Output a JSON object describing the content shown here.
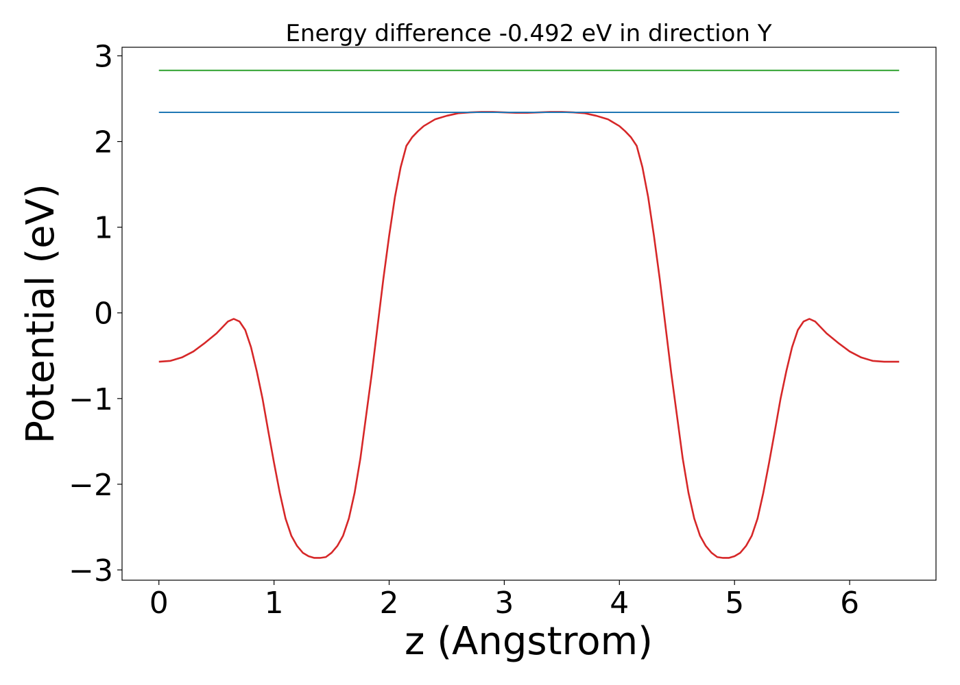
{
  "chart_data": {
    "type": "line",
    "title": "Energy difference -0.492 eV in direction Y",
    "xlabel": "z (Angstrom)",
    "ylabel": "Potential (eV)",
    "xlim": [
      -0.32,
      6.75
    ],
    "ylim": [
      -3.12,
      3.1
    ],
    "xticks": [
      0,
      1,
      2,
      3,
      4,
      5,
      6
    ],
    "xtick_labels": [
      "0",
      "1",
      "2",
      "3",
      "4",
      "5",
      "6"
    ],
    "yticks": [
      -3,
      -2,
      -1,
      0,
      1,
      2,
      3
    ],
    "ytick_labels": [
      "−3",
      "−2",
      "−1",
      "0",
      "1",
      "2",
      "3"
    ],
    "grid": false,
    "series": [
      {
        "color": "#d62728",
        "points": [
          [
            0.0,
            -0.57
          ],
          [
            0.1,
            -0.56
          ],
          [
            0.2,
            -0.52
          ],
          [
            0.3,
            -0.45
          ],
          [
            0.4,
            -0.35
          ],
          [
            0.5,
            -0.24
          ],
          [
            0.55,
            -0.17
          ],
          [
            0.6,
            -0.1
          ],
          [
            0.65,
            -0.07
          ],
          [
            0.7,
            -0.1
          ],
          [
            0.75,
            -0.2
          ],
          [
            0.8,
            -0.4
          ],
          [
            0.85,
            -0.68
          ],
          [
            0.9,
            -1.0
          ],
          [
            0.95,
            -1.38
          ],
          [
            1.0,
            -1.75
          ],
          [
            1.05,
            -2.1
          ],
          [
            1.1,
            -2.4
          ],
          [
            1.15,
            -2.6
          ],
          [
            1.2,
            -2.72
          ],
          [
            1.25,
            -2.8
          ],
          [
            1.3,
            -2.84
          ],
          [
            1.35,
            -2.86
          ],
          [
            1.4,
            -2.86
          ],
          [
            1.45,
            -2.85
          ],
          [
            1.5,
            -2.8
          ],
          [
            1.55,
            -2.72
          ],
          [
            1.6,
            -2.6
          ],
          [
            1.65,
            -2.4
          ],
          [
            1.7,
            -2.1
          ],
          [
            1.75,
            -1.7
          ],
          [
            1.8,
            -1.2
          ],
          [
            1.85,
            -0.7
          ],
          [
            1.9,
            -0.15
          ],
          [
            1.95,
            0.4
          ],
          [
            2.0,
            0.9
          ],
          [
            2.05,
            1.35
          ],
          [
            2.1,
            1.7
          ],
          [
            2.15,
            1.95
          ],
          [
            2.2,
            2.05
          ],
          [
            2.25,
            2.12
          ],
          [
            2.3,
            2.18
          ],
          [
            2.4,
            2.26
          ],
          [
            2.5,
            2.3
          ],
          [
            2.6,
            2.33
          ],
          [
            2.7,
            2.34
          ],
          [
            2.8,
            2.345
          ],
          [
            2.9,
            2.345
          ],
          [
            3.0,
            2.34
          ],
          [
            3.1,
            2.335
          ],
          [
            3.2,
            2.335
          ],
          [
            3.3,
            2.34
          ],
          [
            3.4,
            2.345
          ],
          [
            3.5,
            2.345
          ],
          [
            3.6,
            2.34
          ],
          [
            3.7,
            2.33
          ],
          [
            3.8,
            2.3
          ],
          [
            3.9,
            2.26
          ],
          [
            4.0,
            2.18
          ],
          [
            4.05,
            2.12
          ],
          [
            4.1,
            2.05
          ],
          [
            4.15,
            1.95
          ],
          [
            4.2,
            1.7
          ],
          [
            4.25,
            1.35
          ],
          [
            4.3,
            0.9
          ],
          [
            4.35,
            0.4
          ],
          [
            4.4,
            -0.15
          ],
          [
            4.45,
            -0.7
          ],
          [
            4.5,
            -1.2
          ],
          [
            4.55,
            -1.7
          ],
          [
            4.6,
            -2.1
          ],
          [
            4.65,
            -2.4
          ],
          [
            4.7,
            -2.6
          ],
          [
            4.75,
            -2.72
          ],
          [
            4.8,
            -2.8
          ],
          [
            4.85,
            -2.85
          ],
          [
            4.9,
            -2.86
          ],
          [
            4.95,
            -2.86
          ],
          [
            5.0,
            -2.84
          ],
          [
            5.05,
            -2.8
          ],
          [
            5.1,
            -2.72
          ],
          [
            5.15,
            -2.6
          ],
          [
            5.2,
            -2.4
          ],
          [
            5.25,
            -2.1
          ],
          [
            5.3,
            -1.75
          ],
          [
            5.35,
            -1.38
          ],
          [
            5.4,
            -1.0
          ],
          [
            5.45,
            -0.68
          ],
          [
            5.5,
            -0.4
          ],
          [
            5.55,
            -0.2
          ],
          [
            5.6,
            -0.1
          ],
          [
            5.65,
            -0.07
          ],
          [
            5.7,
            -0.1
          ],
          [
            5.75,
            -0.17
          ],
          [
            5.8,
            -0.24
          ],
          [
            5.9,
            -0.35
          ],
          [
            6.0,
            -0.45
          ],
          [
            6.1,
            -0.52
          ],
          [
            6.2,
            -0.56
          ],
          [
            6.3,
            -0.57
          ],
          [
            6.43,
            -0.57
          ]
        ]
      },
      {
        "color": "#1f77b4",
        "points": [
          [
            0.0,
            2.34
          ],
          [
            6.43,
            2.34
          ]
        ]
      },
      {
        "color": "#2ca02c",
        "points": [
          [
            0.0,
            2.83
          ],
          [
            6.43,
            2.83
          ]
        ]
      }
    ]
  }
}
